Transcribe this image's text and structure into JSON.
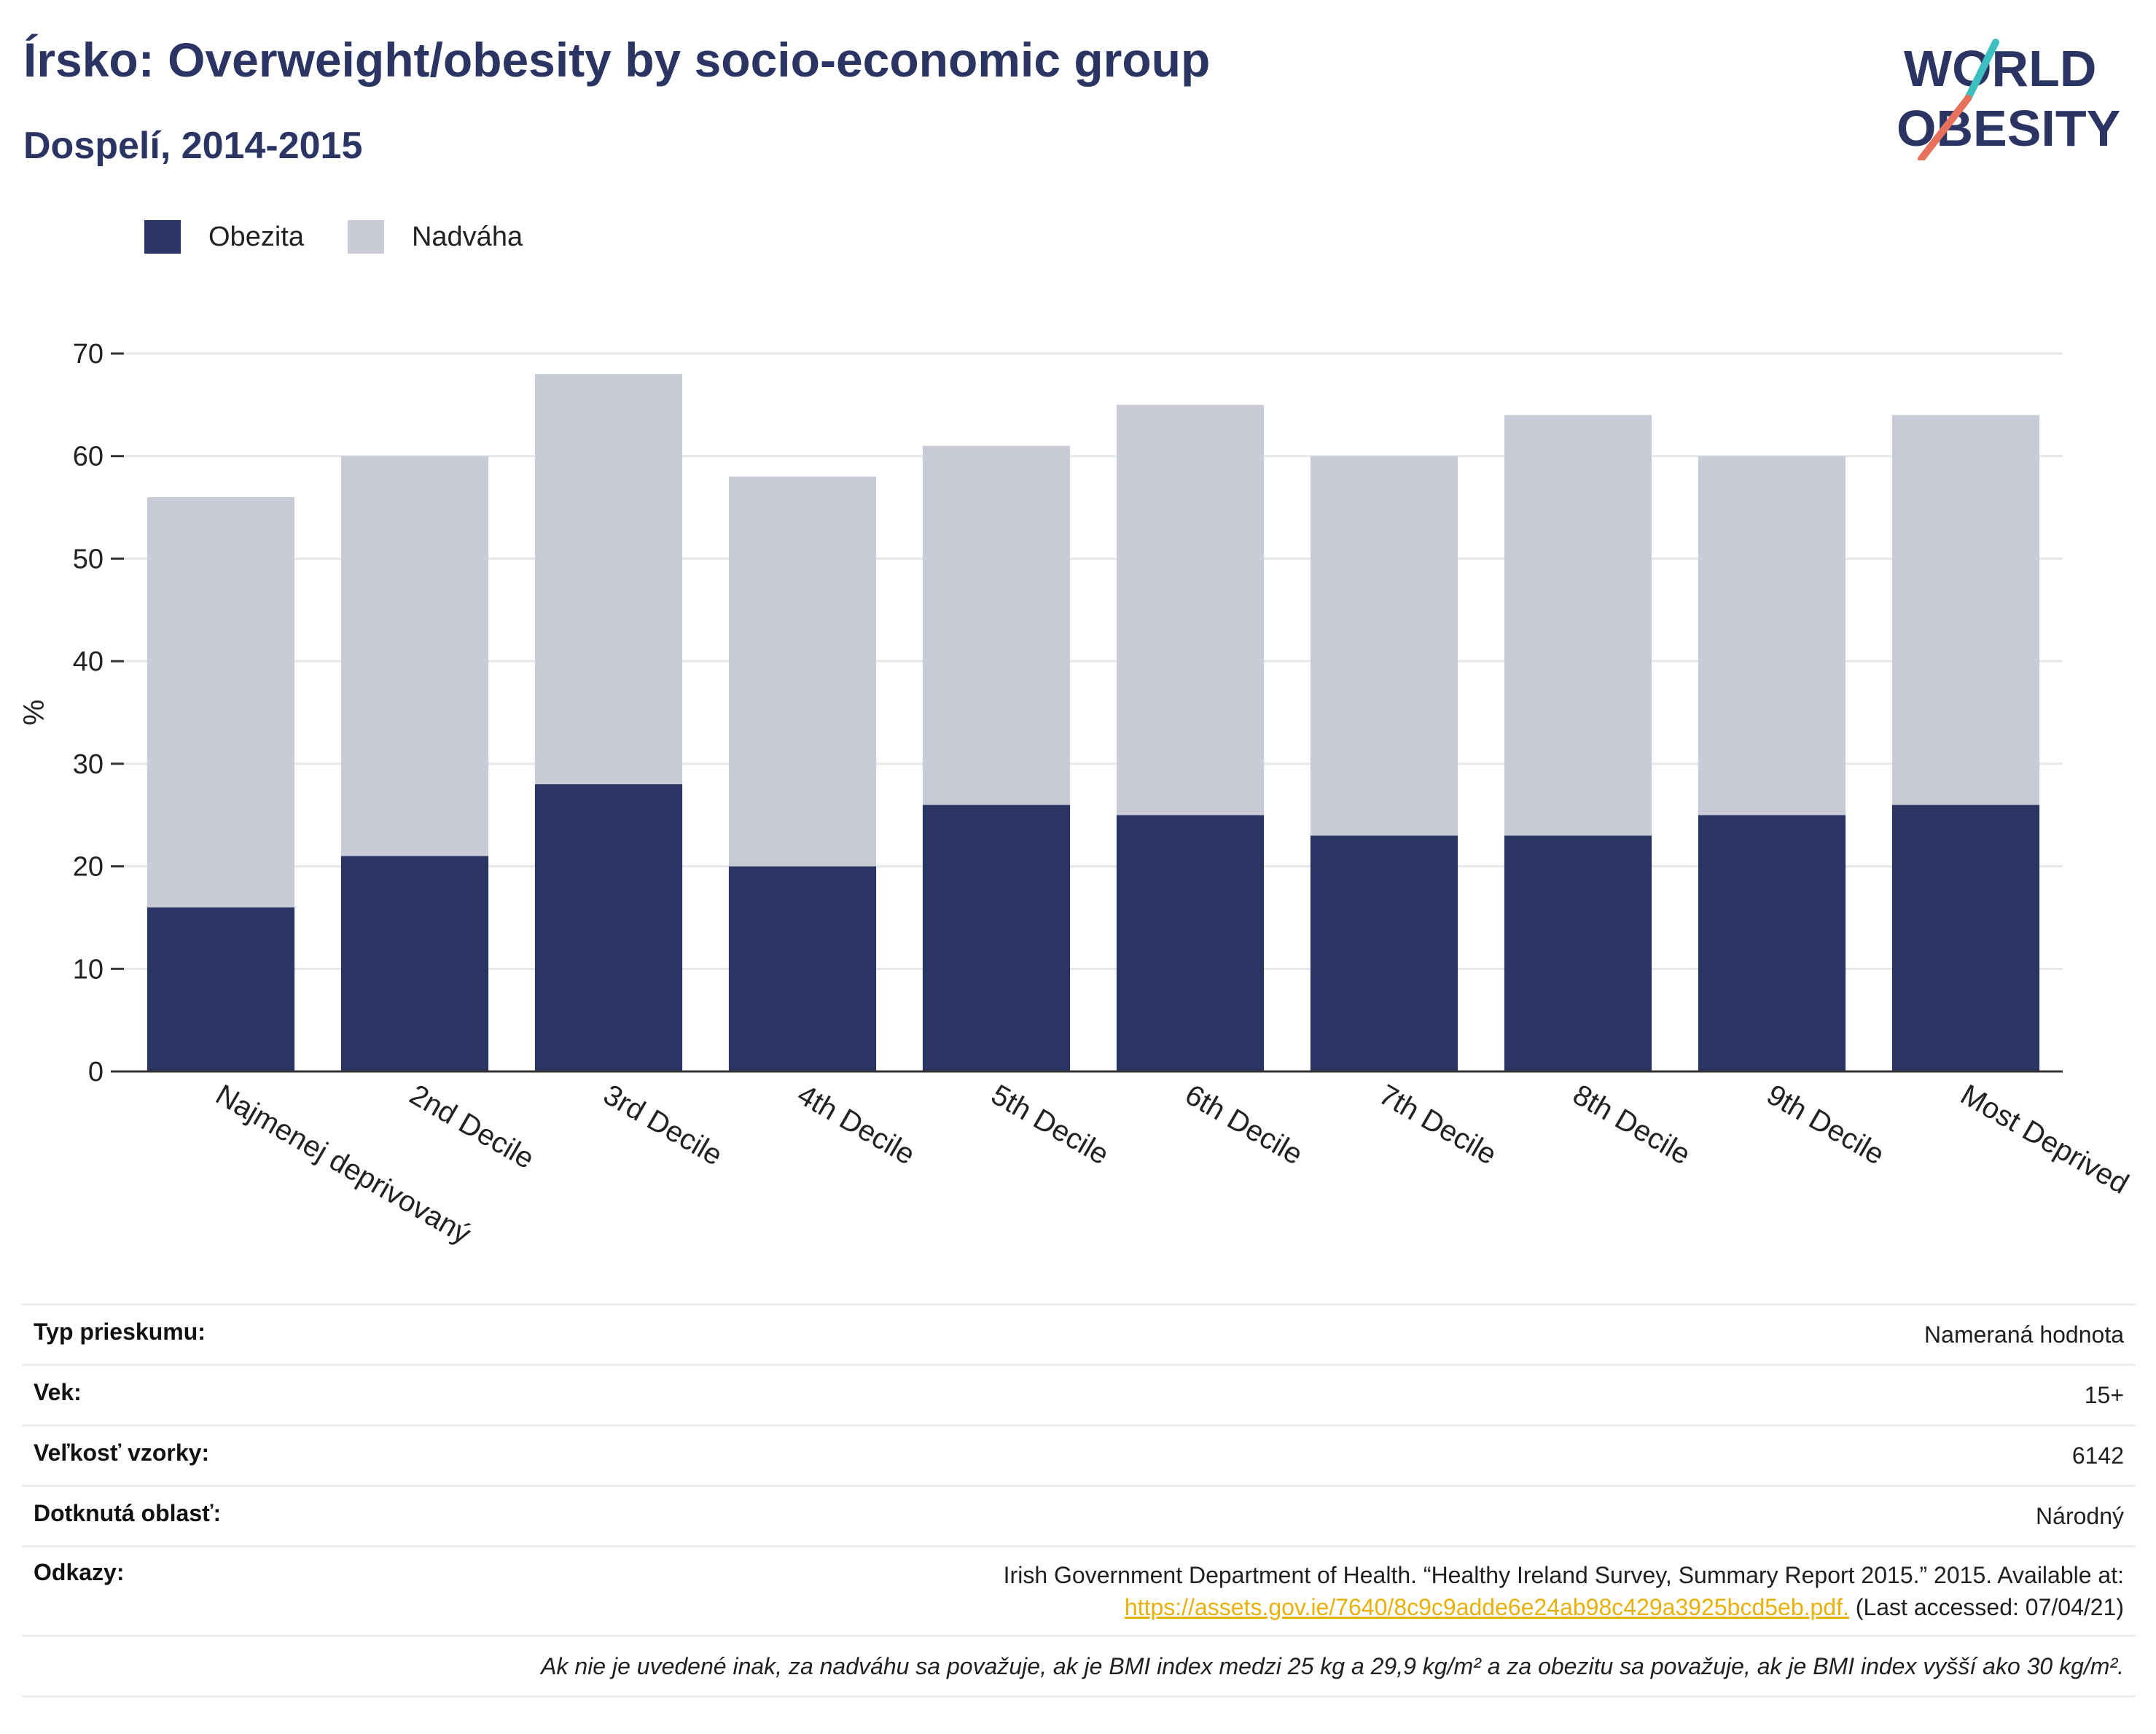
{
  "header": {
    "title": "Írsko: Overweight/obesity by socio-economic group",
    "subtitle": "Dospelí, 2014-2015"
  },
  "logo": {
    "line1": "WORLD",
    "line2": "OBESITY",
    "colors": [
      "#2a3564",
      "#3cbfbe",
      "#e8715b"
    ]
  },
  "legend": [
    {
      "label": "Obezita",
      "color": "#2a3564"
    },
    {
      "label": "Nadváha",
      "color": "#c9cbd6"
    }
  ],
  "chart_data": {
    "type": "bar",
    "stacked": true,
    "categories": [
      "Najmenej deprivovaný",
      "2nd Decile",
      "3rd Decile",
      "4th Decile",
      "5th Decile",
      "6th Decile",
      "7th Decile",
      "8th Decile",
      "9th Decile",
      "Most Deprived"
    ],
    "series": [
      {
        "name": "Obezita",
        "color": "#2a3564",
        "values": [
          16,
          21,
          28,
          20,
          26,
          25,
          23,
          23,
          25,
          26
        ]
      },
      {
        "name": "Nadváha",
        "color": "#c9cbd6",
        "values": [
          40,
          39,
          40,
          38,
          35,
          40,
          37,
          41,
          35,
          38
        ]
      }
    ],
    "ylabel": "%",
    "ylim": [
      0,
      70
    ],
    "yticks": [
      0,
      10,
      20,
      30,
      40,
      50,
      60,
      70
    ],
    "grid": true,
    "legend_position": "top-left"
  },
  "info": {
    "survey_type": {
      "label": "Typ prieskumu:",
      "value": "Nameraná hodnota"
    },
    "age": {
      "label": "Vek:",
      "value": "15+"
    },
    "sample_size": {
      "label": "Veľkosť vzorky:",
      "value": "6142"
    },
    "area": {
      "label": "Dotknutá oblasť:",
      "value": "Národný"
    },
    "references": {
      "label": "Odkazy:",
      "text": "Irish Government Department of Health. “Healthy Ireland Survey, Summary Report 2015.” 2015. Available at:",
      "link": "https://assets.gov.ie/7640/8c9c9adde6e24ab98c429a3925bcd5eb.pdf.",
      "suffix": " (Last accessed: 07/04/21)"
    },
    "note": "Ak nie je uvedené inak, za nadváhu sa považuje, ak je BMI index medzi 25 kg a 29,9 kg/m² a za obezitu sa považuje, ak je BMI index vyšší ako 30 kg/m²."
  }
}
